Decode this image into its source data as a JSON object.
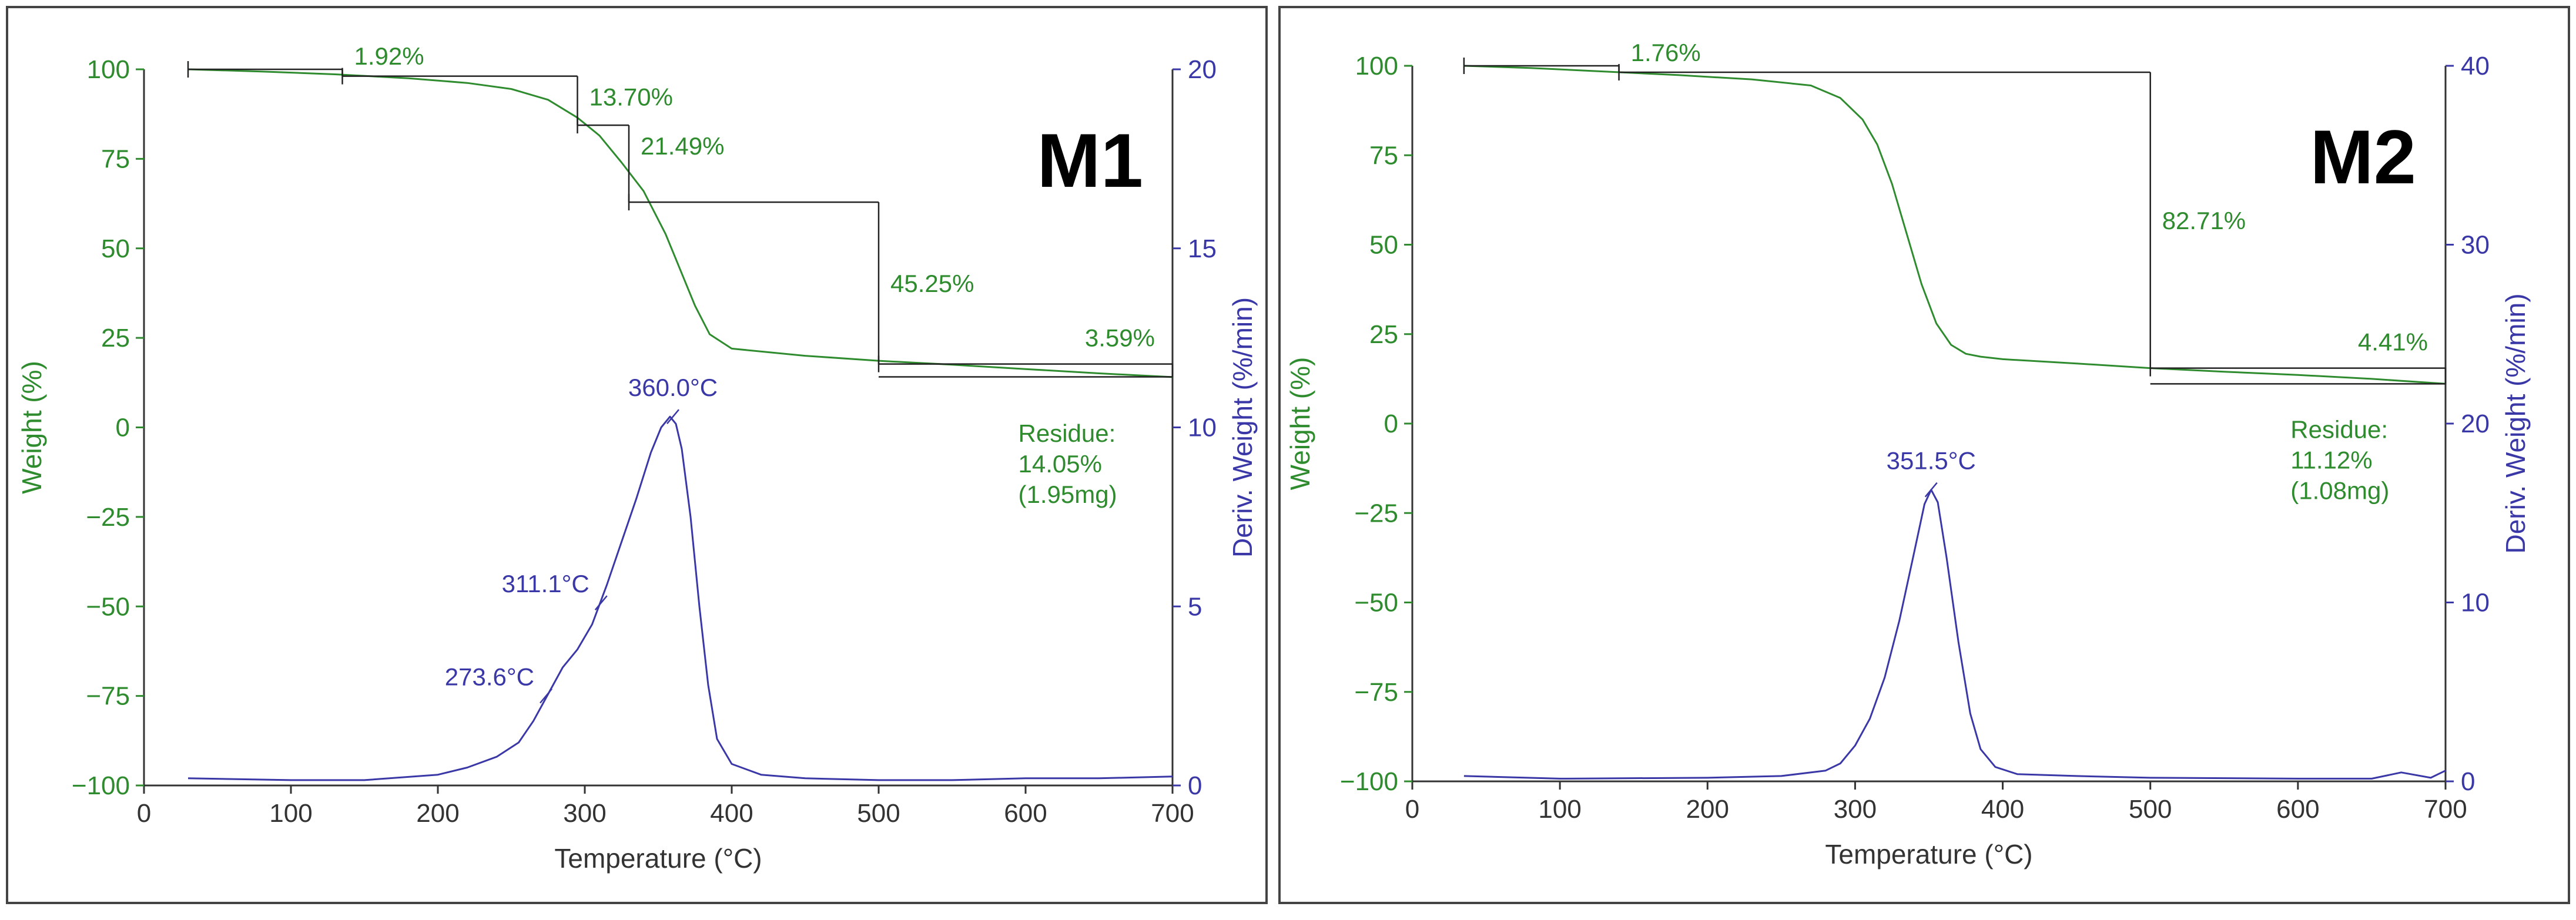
{
  "colors": {
    "weight": "#2e8b2e",
    "deriv": "#3a37a6",
    "axis": "#333333",
    "annotation": "#222222",
    "frame": "#444444",
    "badge": "#000000"
  },
  "chart_data": [
    {
      "type": "line",
      "badge": "M1",
      "xlabel": "Temperature (°C)",
      "ylabel": "Weight (%)",
      "y2label": "Deriv. Weight (%/min)",
      "xlim": [
        0,
        700
      ],
      "ylim": [
        -100,
        100
      ],
      "y2lim": [
        0,
        20
      ],
      "xticks": [
        "0",
        "100",
        "200",
        "300",
        "400",
        "500",
        "600",
        "700"
      ],
      "yticks": [
        "100",
        "75",
        "50",
        "25",
        "0",
        "-25",
        "-50",
        "-75",
        "-100"
      ],
      "y2ticks": [
        "20",
        "15",
        "10",
        "5",
        "0"
      ],
      "series": [
        {
          "axis": "left",
          "x": [
            30,
            80,
            130,
            180,
            220,
            250,
            275,
            295,
            310,
            325,
            340,
            355,
            365,
            375,
            385,
            400,
            450,
            500,
            550,
            600,
            650,
            700
          ],
          "y": [
            100,
            99.4,
            98.6,
            97.5,
            96.2,
            94.5,
            91.5,
            86.5,
            81.5,
            74,
            66,
            54,
            44,
            34,
            26,
            22,
            20,
            18.6,
            17.5,
            16.3,
            15.1,
            14.05
          ]
        },
        {
          "axis": "right",
          "x": [
            30,
            100,
            150,
            200,
            220,
            240,
            255,
            265,
            275,
            285,
            295,
            305,
            315,
            325,
            335,
            345,
            352,
            358,
            362,
            366,
            372,
            378,
            384,
            390,
            400,
            420,
            450,
            500,
            550,
            600,
            650,
            700
          ],
          "y": [
            0.2,
            0.15,
            0.15,
            0.3,
            0.5,
            0.8,
            1.2,
            1.8,
            2.55,
            3.3,
            3.8,
            4.5,
            5.6,
            6.8,
            8.0,
            9.3,
            10.0,
            10.3,
            10.1,
            9.4,
            7.5,
            5.0,
            2.8,
            1.3,
            0.6,
            0.3,
            0.2,
            0.15,
            0.15,
            0.2,
            0.2,
            0.25
          ]
        }
      ],
      "peaks": [
        {
          "x": 360.0,
          "y": 10.3,
          "label": "360.0°C"
        },
        {
          "x": 311.1,
          "y": 5.1,
          "label": "311.1°C"
        },
        {
          "x": 273.6,
          "y": 2.5,
          "label": "273.6°C"
        }
      ],
      "steps": [
        {
          "x1": 30,
          "x2": 135,
          "y1": 100,
          "y2": 98.1,
          "label": "1.92%"
        },
        {
          "x1": 135,
          "x2": 295,
          "y1": 98.1,
          "y2": 84.4,
          "label": "13.70%"
        },
        {
          "x1": 295,
          "x2": 330,
          "y1": 84.4,
          "y2": 62.9,
          "label": "21.49%"
        },
        {
          "x1": 330,
          "x2": 500,
          "y1": 62.9,
          "y2": 17.7,
          "label": "45.25%"
        },
        {
          "x1": 500,
          "x2": 700,
          "y1": 17.7,
          "y2": 14.1,
          "label": "3.59%"
        }
      ],
      "residue": [
        "Residue:",
        "14.05%",
        "(1.95mg)"
      ]
    },
    {
      "type": "line",
      "badge": "M2",
      "xlabel": "Temperature (°C)",
      "ylabel": "Weight (%)",
      "y2label": "Deriv. Weight (%/min)",
      "xlim": [
        0,
        700
      ],
      "ylim": [
        -100,
        100
      ],
      "y2lim": [
        0,
        40
      ],
      "xticks": [
        "0",
        "100",
        "200",
        "300",
        "400",
        "500",
        "600",
        "700"
      ],
      "yticks": [
        "100",
        "75",
        "50",
        "25",
        "0",
        "-25",
        "-50",
        "-75",
        "-100"
      ],
      "y2ticks": [
        "40",
        "30",
        "20",
        "10",
        "0"
      ],
      "series": [
        {
          "axis": "left",
          "x": [
            35,
            80,
            130,
            180,
            230,
            270,
            290,
            305,
            315,
            325,
            335,
            345,
            355,
            365,
            375,
            385,
            400,
            450,
            500,
            550,
            600,
            650,
            700
          ],
          "y": [
            100,
            99.4,
            98.4,
            97.4,
            96.2,
            94.5,
            91,
            85,
            78,
            67,
            53,
            39,
            28,
            22,
            19.5,
            18.7,
            18,
            16.8,
            15.5,
            14.5,
            13.6,
            12.5,
            11.12
          ]
        },
        {
          "axis": "right",
          "x": [
            35,
            100,
            200,
            250,
            280,
            290,
            300,
            310,
            320,
            330,
            340,
            347,
            351.5,
            356,
            362,
            370,
            378,
            385,
            395,
            410,
            450,
            500,
            600,
            650,
            670,
            690,
            700
          ],
          "y": [
            0.3,
            0.15,
            0.2,
            0.3,
            0.6,
            1.0,
            2.0,
            3.5,
            5.8,
            9.0,
            12.8,
            15.5,
            16.3,
            15.6,
            12.5,
            7.8,
            3.8,
            1.8,
            0.8,
            0.4,
            0.3,
            0.2,
            0.15,
            0.15,
            0.5,
            0.2,
            0.6
          ]
        }
      ],
      "peaks": [
        {
          "x": 351.5,
          "y": 16.3,
          "label": "351.5°C"
        }
      ],
      "steps": [
        {
          "x1": 35,
          "x2": 140,
          "y1": 100,
          "y2": 98.2,
          "label": "1.76%"
        },
        {
          "x1": 140,
          "x2": 500,
          "y1": 98.2,
          "y2": 15.5,
          "label": "82.71%"
        },
        {
          "x1": 500,
          "x2": 700,
          "y1": 15.5,
          "y2": 11.1,
          "label": "4.41%"
        }
      ],
      "residue": [
        "Residue:",
        "11.12%",
        "(1.08mg)"
      ]
    }
  ]
}
